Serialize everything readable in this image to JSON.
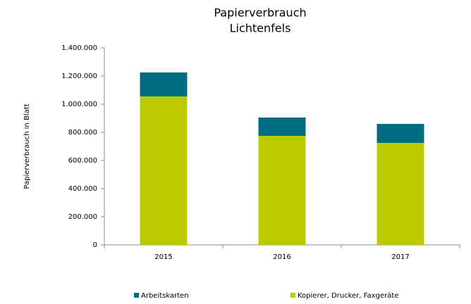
{
  "chart_data": {
    "type": "stacked-bar",
    "title": [
      "Papierverbrauch",
      "Lichtenfels"
    ],
    "y_label": "Papierverbrauch in Blatt",
    "categories": [
      "2015",
      "2016",
      "2017"
    ],
    "series": [
      {
        "name": "Kopierer, Drucker, Faxgeräte",
        "color": "#bccb00",
        "values": [
          1055000,
          775000,
          725000
        ]
      },
      {
        "name": "Arbeitskarten",
        "color": "#006e82",
        "values": [
          170000,
          130000,
          135000
        ]
      }
    ],
    "ylim": [
      0,
      1400000
    ],
    "yticks": [
      0,
      {
        "value": 200000,
        "label": "200.000"
      },
      {
        "value": 400000,
        "label": "400.000"
      },
      {
        "value": 600000,
        "label": "600.000"
      },
      {
        "value": 800000,
        "label": "800.000"
      },
      {
        "value": 1000000,
        "label": "1.000.000"
      },
      {
        "value": 1200000,
        "label": "1.200.000"
      },
      {
        "value": 1400000,
        "label": "1.400.000"
      }
    ],
    "legend": "bottom"
  }
}
